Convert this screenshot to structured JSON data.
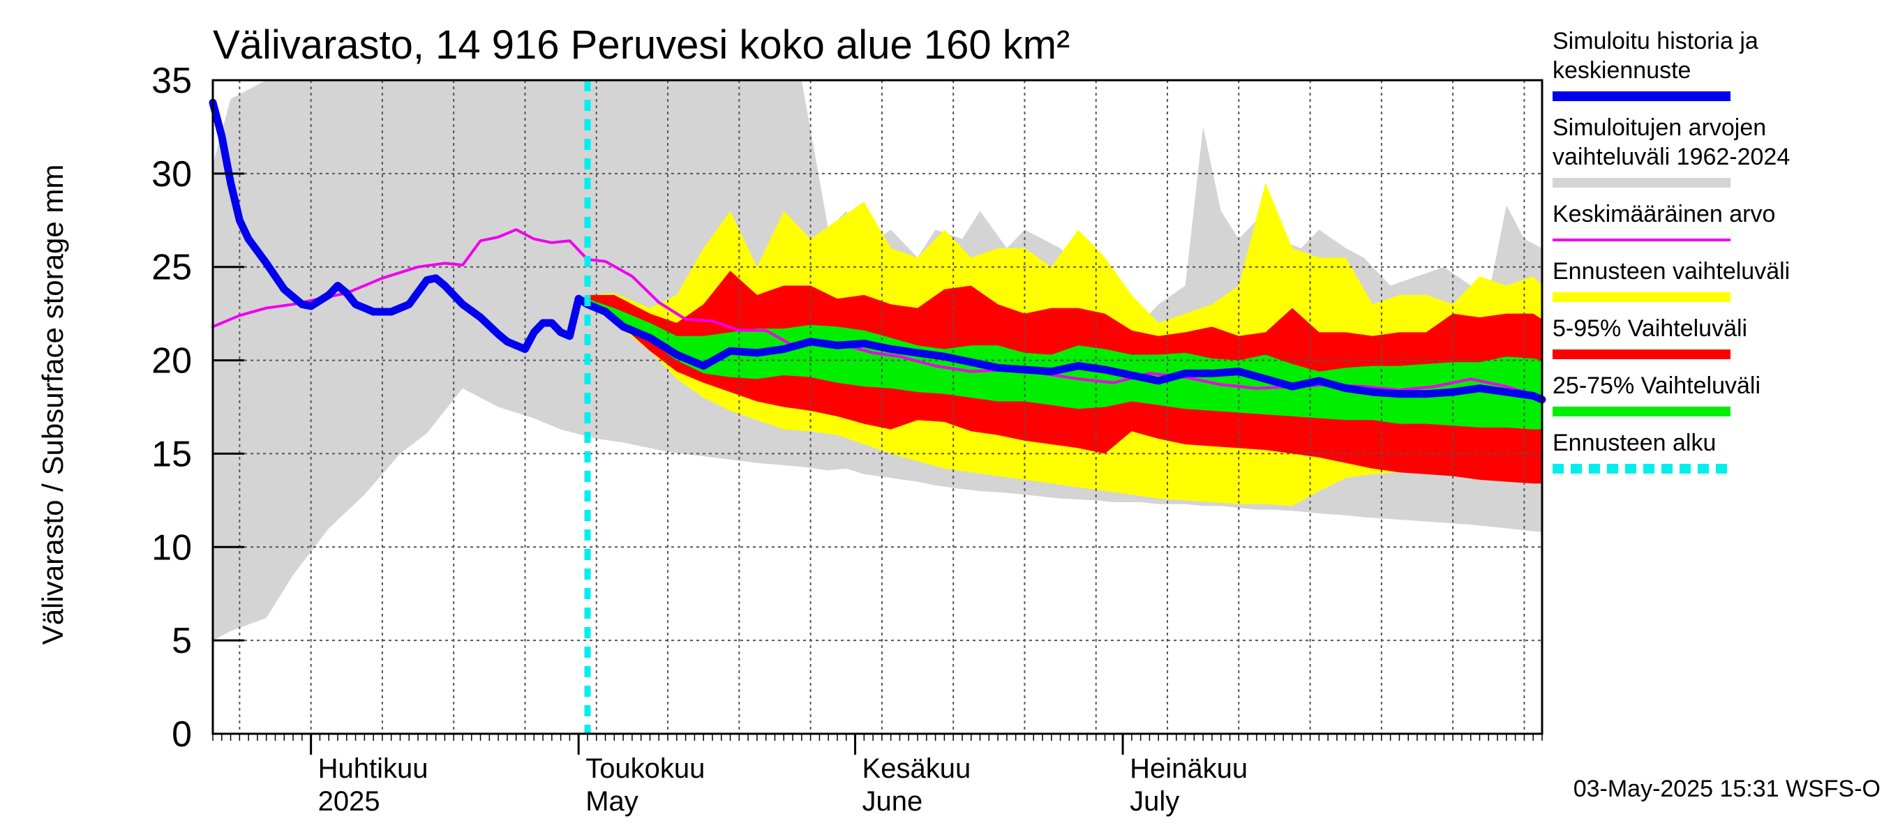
{
  "chart_data": {
    "type": "area",
    "title": "Välivarasto, 14 916 Peruvesi koko alue 160 km²",
    "ylabel": "Välivarasto / Subsurface storage  mm",
    "xlabel": "",
    "ylim": [
      0,
      35
    ],
    "yticks": [
      0,
      5,
      10,
      15,
      20,
      25,
      30,
      35
    ],
    "xrange": [
      "2025-03-21",
      "2025-08-17"
    ],
    "x_day_start": -11,
    "x_day_end": 138,
    "month_labels": [
      {
        "fi": "Huhtikuu",
        "en": "2025",
        "day": 0
      },
      {
        "fi": "Toukokuu",
        "en": "May",
        "day": 30
      },
      {
        "fi": "Kesäkuu",
        "en": "June",
        "day": 61
      },
      {
        "fi": "Heinäkuu",
        "en": "July",
        "day": 91
      }
    ],
    "forecast_start_day": 31,
    "series": [
      {
        "name": "Simuloitujen arvojen vaihteluväli 1962-2024",
        "kind": "band",
        "color": "#d4d4d4",
        "x": [
          -11,
          -9,
          -5,
          -2,
          2,
          6,
          10,
          13,
          17,
          21,
          25,
          28,
          32,
          35,
          40,
          45,
          50,
          55,
          58,
          60,
          62,
          65,
          68,
          70,
          73,
          75,
          78,
          80,
          84,
          88,
          90,
          93,
          95,
          98,
          100,
          102,
          104,
          106,
          108,
          111,
          113,
          116,
          118,
          121,
          124,
          127,
          130,
          132,
          134,
          136,
          138
        ],
        "upper": [
          30.5,
          34,
          35,
          35,
          35,
          35,
          35,
          35,
          35,
          35,
          35,
          35,
          35,
          35,
          35,
          35,
          35,
          35,
          27,
          28,
          26,
          27,
          25.5,
          27,
          26.5,
          28,
          26,
          27,
          26,
          24,
          23,
          22,
          23,
          24,
          32.5,
          28,
          26.5,
          27.5,
          26.5,
          26,
          27,
          26,
          25.5,
          24,
          24.5,
          25,
          24,
          23.5,
          28.3,
          26.5,
          26
        ],
        "lower": [
          5,
          5.5,
          6.2,
          8.5,
          11,
          12.8,
          15,
          16.1,
          18.5,
          17.5,
          16.9,
          16.3,
          15.8,
          15.6,
          15.1,
          14.8,
          14.5,
          14.3,
          14.1,
          14.2,
          13.9,
          13.7,
          13.5,
          13.3,
          13.1,
          13,
          12.9,
          12.8,
          12.6,
          12.5,
          12.4,
          12.4,
          12.3,
          12.3,
          12.2,
          12.2,
          12.1,
          12,
          12,
          11.9,
          11.8,
          11.7,
          11.6,
          11.5,
          11.4,
          11.3,
          11.2,
          11.1,
          11,
          10.9,
          10.8
        ]
      },
      {
        "name": "Ennusteen vaihteluväli",
        "kind": "band",
        "color": "#ffff00",
        "x": [
          31,
          34,
          38,
          41,
          44,
          47,
          50,
          53,
          56,
          59,
          62,
          65,
          68,
          71,
          74,
          77,
          80,
          83,
          86,
          89,
          92,
          95,
          98,
          101,
          104,
          107,
          110,
          113,
          116,
          119,
          122,
          125,
          128,
          131,
          134,
          137,
          138
        ],
        "upper": [
          23.5,
          23.6,
          22.8,
          23.5,
          26,
          28,
          25,
          28,
          26.5,
          27.5,
          28.5,
          26,
          25.5,
          27,
          25.5,
          26,
          26,
          25,
          27,
          25.5,
          23.5,
          22,
          22.5,
          23,
          24,
          29.5,
          26,
          25.5,
          25.5,
          23,
          23.5,
          23.5,
          23,
          24.5,
          24,
          24.5,
          24
        ],
        "lower": [
          23,
          22,
          20.5,
          19,
          18,
          17.3,
          16.8,
          16.3,
          16.2,
          16,
          15.5,
          15,
          14.6,
          14.2,
          14,
          13.8,
          13.6,
          13.4,
          13.2,
          13,
          12.8,
          12.6,
          12.5,
          12.4,
          12.3,
          12.3,
          12.2,
          13,
          13.7,
          13.9,
          14,
          14.2,
          14.3,
          14,
          13.7,
          13.5,
          13.5
        ]
      },
      {
        "name": "5-95% Vaihteluväli",
        "kind": "band",
        "color": "#ff0000",
        "x": [
          31,
          34,
          38,
          41,
          44,
          47,
          50,
          53,
          56,
          59,
          62,
          65,
          68,
          71,
          74,
          77,
          80,
          83,
          86,
          89,
          92,
          95,
          98,
          101,
          104,
          107,
          110,
          113,
          116,
          119,
          122,
          125,
          128,
          131,
          134,
          137,
          138
        ],
        "upper": [
          23.5,
          23.5,
          22.5,
          22,
          23,
          24.8,
          23.5,
          24,
          24,
          23.3,
          23.5,
          23,
          22.8,
          23.8,
          24,
          23,
          22.5,
          22.8,
          22.8,
          22.5,
          21.6,
          21.3,
          21.5,
          21.8,
          21.3,
          21.5,
          22.8,
          21.5,
          21.5,
          21.3,
          21.5,
          21.5,
          22.5,
          22.3,
          22.5,
          22.5,
          22.2
        ],
        "lower": [
          23.2,
          22.2,
          20.5,
          19.4,
          18.8,
          18.3,
          17.8,
          17.5,
          17.3,
          17.0,
          16.6,
          16.3,
          16.8,
          16.7,
          16.2,
          16.0,
          15.7,
          15.5,
          15.3,
          15.0,
          16.2,
          15.8,
          15.5,
          15.4,
          15.3,
          15.2,
          15.0,
          14.8,
          14.5,
          14.2,
          14.0,
          13.9,
          13.8,
          13.6,
          13.5,
          13.4,
          13.4
        ]
      },
      {
        "name": "25-75% Vaihteluväli",
        "kind": "band",
        "color": "#00ee00",
        "x": [
          31,
          34,
          38,
          41,
          44,
          47,
          50,
          53,
          56,
          59,
          62,
          65,
          68,
          71,
          74,
          77,
          80,
          83,
          86,
          89,
          92,
          95,
          98,
          101,
          104,
          107,
          110,
          113,
          116,
          119,
          122,
          125,
          128,
          131,
          134,
          137,
          138
        ],
        "upper": [
          23.3,
          22.8,
          22,
          21.3,
          21.3,
          21.5,
          21.7,
          21.7,
          21.9,
          21.8,
          21.6,
          21.2,
          20.8,
          20.6,
          20.8,
          20.8,
          20.4,
          20.3,
          20.8,
          20.6,
          20.3,
          20.3,
          20.4,
          20.1,
          20.0,
          20.3,
          19.8,
          19.4,
          19.6,
          19.7,
          19.7,
          19.8,
          19.9,
          19.9,
          20.2,
          20.1,
          20.0
        ],
        "lower": [
          23.1,
          22.3,
          21.0,
          20.0,
          19.3,
          19.1,
          19.0,
          19.2,
          19.1,
          18.8,
          18.6,
          18.5,
          18.3,
          18.2,
          18.0,
          17.8,
          17.8,
          17.6,
          17.4,
          17.5,
          17.8,
          17.6,
          17.4,
          17.3,
          17.2,
          17.1,
          17.0,
          16.9,
          16.8,
          16.8,
          16.6,
          16.6,
          16.5,
          16.4,
          16.4,
          16.3,
          16.3
        ]
      },
      {
        "name": "Keskimääräinen arvo",
        "kind": "line",
        "color": "#ee00ee",
        "width": 4,
        "x": [
          -11,
          -8,
          -5,
          -2,
          1,
          4,
          8,
          12,
          15,
          17,
          19,
          21,
          23,
          25,
          27,
          29,
          31,
          33,
          36,
          39,
          42,
          45,
          48,
          51,
          54,
          57,
          60,
          63,
          66,
          70,
          74,
          78,
          82,
          86,
          90,
          94,
          98,
          102,
          106,
          110,
          114,
          118,
          122,
          126,
          130,
          134,
          138
        ],
        "y": [
          21.8,
          22.4,
          22.8,
          23,
          23.3,
          23.6,
          24.4,
          25,
          25.2,
          25.1,
          26.4,
          26.6,
          27,
          26.5,
          26.3,
          26.4,
          25.4,
          25.3,
          24.5,
          23.1,
          22.2,
          22.1,
          21.6,
          21.6,
          20.8,
          21,
          20.8,
          20.4,
          20.2,
          19.7,
          19.4,
          19.5,
          19.3,
          19,
          18.8,
          19.3,
          19.1,
          18.7,
          18.5,
          18.6,
          18.7,
          18.6,
          18.4,
          18.6,
          19.0,
          18.6,
          18.0
        ]
      },
      {
        "name": "Simuloitu historia ja keskiennuste",
        "kind": "line",
        "color": "#0000ee",
        "width": 11,
        "x": [
          -11,
          -10,
          -9,
          -8,
          -7,
          -5,
          -3,
          -1,
          0,
          1,
          2,
          3,
          4,
          5,
          6,
          7,
          9,
          11,
          13,
          14,
          15,
          16,
          17,
          19,
          21,
          22,
          23,
          24,
          25,
          26,
          27,
          28,
          29,
          30,
          31,
          33,
          35,
          38,
          41,
          44,
          47,
          50,
          53,
          56,
          59,
          62,
          65,
          68,
          71,
          74,
          77,
          80,
          83,
          86,
          89,
          92,
          95,
          98,
          101,
          104,
          107,
          110,
          113,
          116,
          119,
          122,
          125,
          128,
          131,
          134,
          137,
          138
        ],
        "y": [
          33.8,
          32,
          29.5,
          27.5,
          26.5,
          25.2,
          23.8,
          23,
          22.9,
          23.2,
          23.5,
          24,
          23.6,
          23,
          22.8,
          22.6,
          22.6,
          23,
          24.3,
          24.4,
          24,
          23.5,
          23,
          22.3,
          21.4,
          21,
          20.8,
          20.6,
          21.5,
          22,
          22,
          21.5,
          21.3,
          23.3,
          23,
          22.6,
          21.8,
          21.2,
          20.3,
          19.7,
          20.5,
          20.4,
          20.6,
          21,
          20.8,
          20.9,
          20.6,
          20.4,
          20.2,
          19.9,
          19.6,
          19.5,
          19.4,
          19.7,
          19.5,
          19.2,
          18.9,
          19.3,
          19.3,
          19.4,
          19.0,
          18.6,
          18.9,
          18.5,
          18.3,
          18.2,
          18.2,
          18.3,
          18.5,
          18.3,
          18.1,
          17.9
        ]
      },
      {
        "name": "Ennusteen alku",
        "kind": "vline",
        "color": "#00eeee"
      }
    ],
    "legend": [
      {
        "label": "Simuloitu historia ja\nkeskiennuste",
        "color": "#0000ee",
        "style": "solid"
      },
      {
        "label": "Simuloitujen arvojen\nvaihteluväli 1962-2024",
        "color": "#d4d4d4",
        "style": "solid"
      },
      {
        "label": "Keskimääräinen arvo",
        "color": "#ee00ee",
        "style": "thin"
      },
      {
        "label": "Ennusteen vaihteluväli",
        "color": "#ffff00",
        "style": "solid"
      },
      {
        "label": "5-95% Vaihteluväli",
        "color": "#ff0000",
        "style": "solid"
      },
      {
        "label": "25-75% Vaihteluväli",
        "color": "#00ee00",
        "style": "solid"
      },
      {
        "label": "Ennusteen alku",
        "color": "#00eeee",
        "style": "dashed"
      }
    ],
    "legend_position": "right",
    "footer": "03-May-2025 15:31 WSFS-O"
  }
}
